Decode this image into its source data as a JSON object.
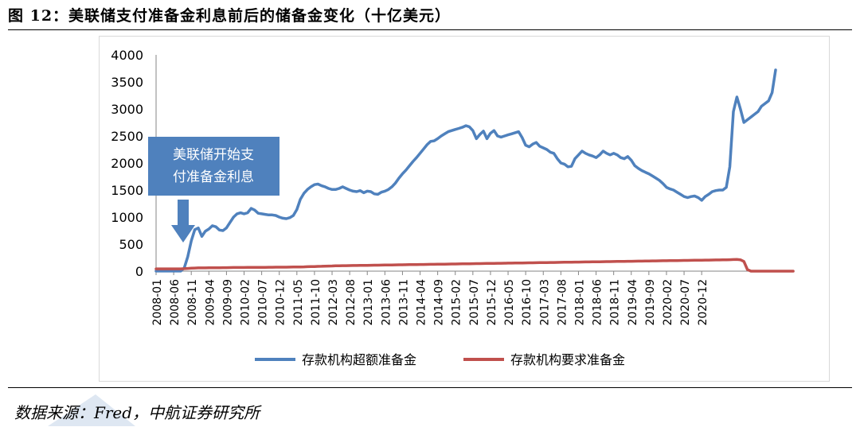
{
  "header": {
    "title": "图 12：美联储支付准备金利息前后的储备金变化（十亿美元）"
  },
  "footer": {
    "source": "数据来源：Fred，中航证券研究所"
  },
  "colors": {
    "excess": "#4f81bd",
    "required": "#c0504d",
    "callout_bg": "#4f81bd",
    "arrow": "#4f81bd"
  },
  "chart_data": {
    "type": "line",
    "title": "",
    "xlabel": "",
    "ylabel": "",
    "ylim": [
      0,
      4000
    ],
    "yticks": [
      0,
      500,
      1000,
      1500,
      2000,
      2500,
      3000,
      3500,
      4000
    ],
    "xtick_labels": [
      "2008-01",
      "2008-06",
      "2008-11",
      "2009-04",
      "2009-09",
      "2010-02",
      "2010-07",
      "2010-12",
      "2011-05",
      "2011-10",
      "2012-03",
      "2012-08",
      "2013-01",
      "2013-06",
      "2013-11",
      "2014-04",
      "2014-09",
      "2015-02",
      "2015-07",
      "2015-12",
      "2016-05",
      "2016-10",
      "2017-03",
      "2017-08",
      "2018-01",
      "2018-06",
      "2018-11",
      "2019-04",
      "2019-09",
      "2020-02",
      "2020-07",
      "2020-12"
    ],
    "x_start": "2008-01",
    "grid": false,
    "legend_position": "bottom",
    "annotation": {
      "text_line1": "美联储开始支",
      "text_line2": "付准备金利息",
      "points_to": "2008-10"
    },
    "series": [
      {
        "name": "存款机构超额准备金",
        "values": [
          2,
          2,
          2,
          2,
          2,
          2,
          2,
          2,
          60,
          267,
          559,
          767,
          798,
          643,
          740,
          780,
          840,
          820,
          760,
          750,
          800,
          900,
          1000,
          1060,
          1080,
          1060,
          1080,
          1160,
          1130,
          1070,
          1060,
          1050,
          1040,
          1040,
          1030,
          1000,
          980,
          970,
          990,
          1030,
          1140,
          1330,
          1440,
          1510,
          1560,
          1600,
          1610,
          1580,
          1560,
          1530,
          1510,
          1510,
          1530,
          1560,
          1530,
          1500,
          1480,
          1470,
          1490,
          1450,
          1480,
          1470,
          1430,
          1420,
          1460,
          1480,
          1510,
          1560,
          1630,
          1720,
          1800,
          1870,
          1950,
          2030,
          2100,
          2180,
          2260,
          2340,
          2400,
          2410,
          2450,
          2500,
          2540,
          2580,
          2600,
          2620,
          2640,
          2660,
          2690,
          2670,
          2600,
          2450,
          2530,
          2590,
          2450,
          2550,
          2600,
          2500,
          2480,
          2500,
          2520,
          2540,
          2560,
          2580,
          2470,
          2330,
          2300,
          2350,
          2380,
          2310,
          2280,
          2250,
          2200,
          2180,
          2080,
          2000,
          1980,
          1930,
          1940,
          2080,
          2150,
          2220,
          2180,
          2150,
          2130,
          2100,
          2150,
          2220,
          2180,
          2150,
          2180,
          2150,
          2100,
          2080,
          2120,
          2050,
          1950,
          1900,
          1860,
          1830,
          1800,
          1760,
          1720,
          1680,
          1620,
          1550,
          1520,
          1500,
          1460,
          1420,
          1380,
          1360,
          1380,
          1390,
          1360,
          1310,
          1380,
          1420,
          1470,
          1490,
          1500,
          1500,
          1550,
          1930,
          2950,
          3220,
          3000,
          2750,
          2800,
          2850,
          2900,
          2950,
          3050,
          3100,
          3150,
          3300,
          3720
        ]
      },
      {
        "name": "存款机构要求准备金",
        "values": [
          42,
          42,
          42,
          42,
          42,
          42,
          42,
          42,
          45,
          50,
          55,
          58,
          60,
          60,
          60,
          62,
          63,
          63,
          63,
          64,
          65,
          66,
          67,
          68,
          68,
          68,
          69,
          70,
          70,
          70,
          71,
          71,
          72,
          72,
          73,
          73,
          74,
          74,
          75,
          76,
          77,
          78,
          80,
          82,
          84,
          86,
          88,
          90,
          92,
          94,
          96,
          98,
          100,
          101,
          102,
          103,
          104,
          105,
          106,
          107,
          108,
          109,
          110,
          111,
          112,
          113,
          114,
          115,
          116,
          117,
          118,
          119,
          120,
          121,
          122,
          123,
          124,
          125,
          126,
          127,
          128,
          129,
          130,
          131,
          132,
          133,
          134,
          135,
          136,
          137,
          138,
          139,
          140,
          141,
          142,
          143,
          144,
          145,
          146,
          147,
          148,
          149,
          150,
          151,
          152,
          153,
          154,
          155,
          156,
          157,
          158,
          159,
          160,
          161,
          162,
          163,
          164,
          165,
          166,
          167,
          168,
          169,
          170,
          171,
          172,
          173,
          174,
          175,
          176,
          177,
          178,
          179,
          180,
          181,
          182,
          183,
          184,
          185,
          186,
          187,
          188,
          189,
          190,
          191,
          192,
          193,
          194,
          195,
          196,
          197,
          198,
          199,
          200,
          201,
          202,
          203,
          204,
          205,
          206,
          207,
          208,
          209,
          210,
          212,
          214,
          216,
          210,
          180,
          30,
          0,
          0,
          0,
          0,
          0,
          0,
          0,
          0,
          0,
          0,
          0,
          0,
          0
        ]
      }
    ]
  }
}
